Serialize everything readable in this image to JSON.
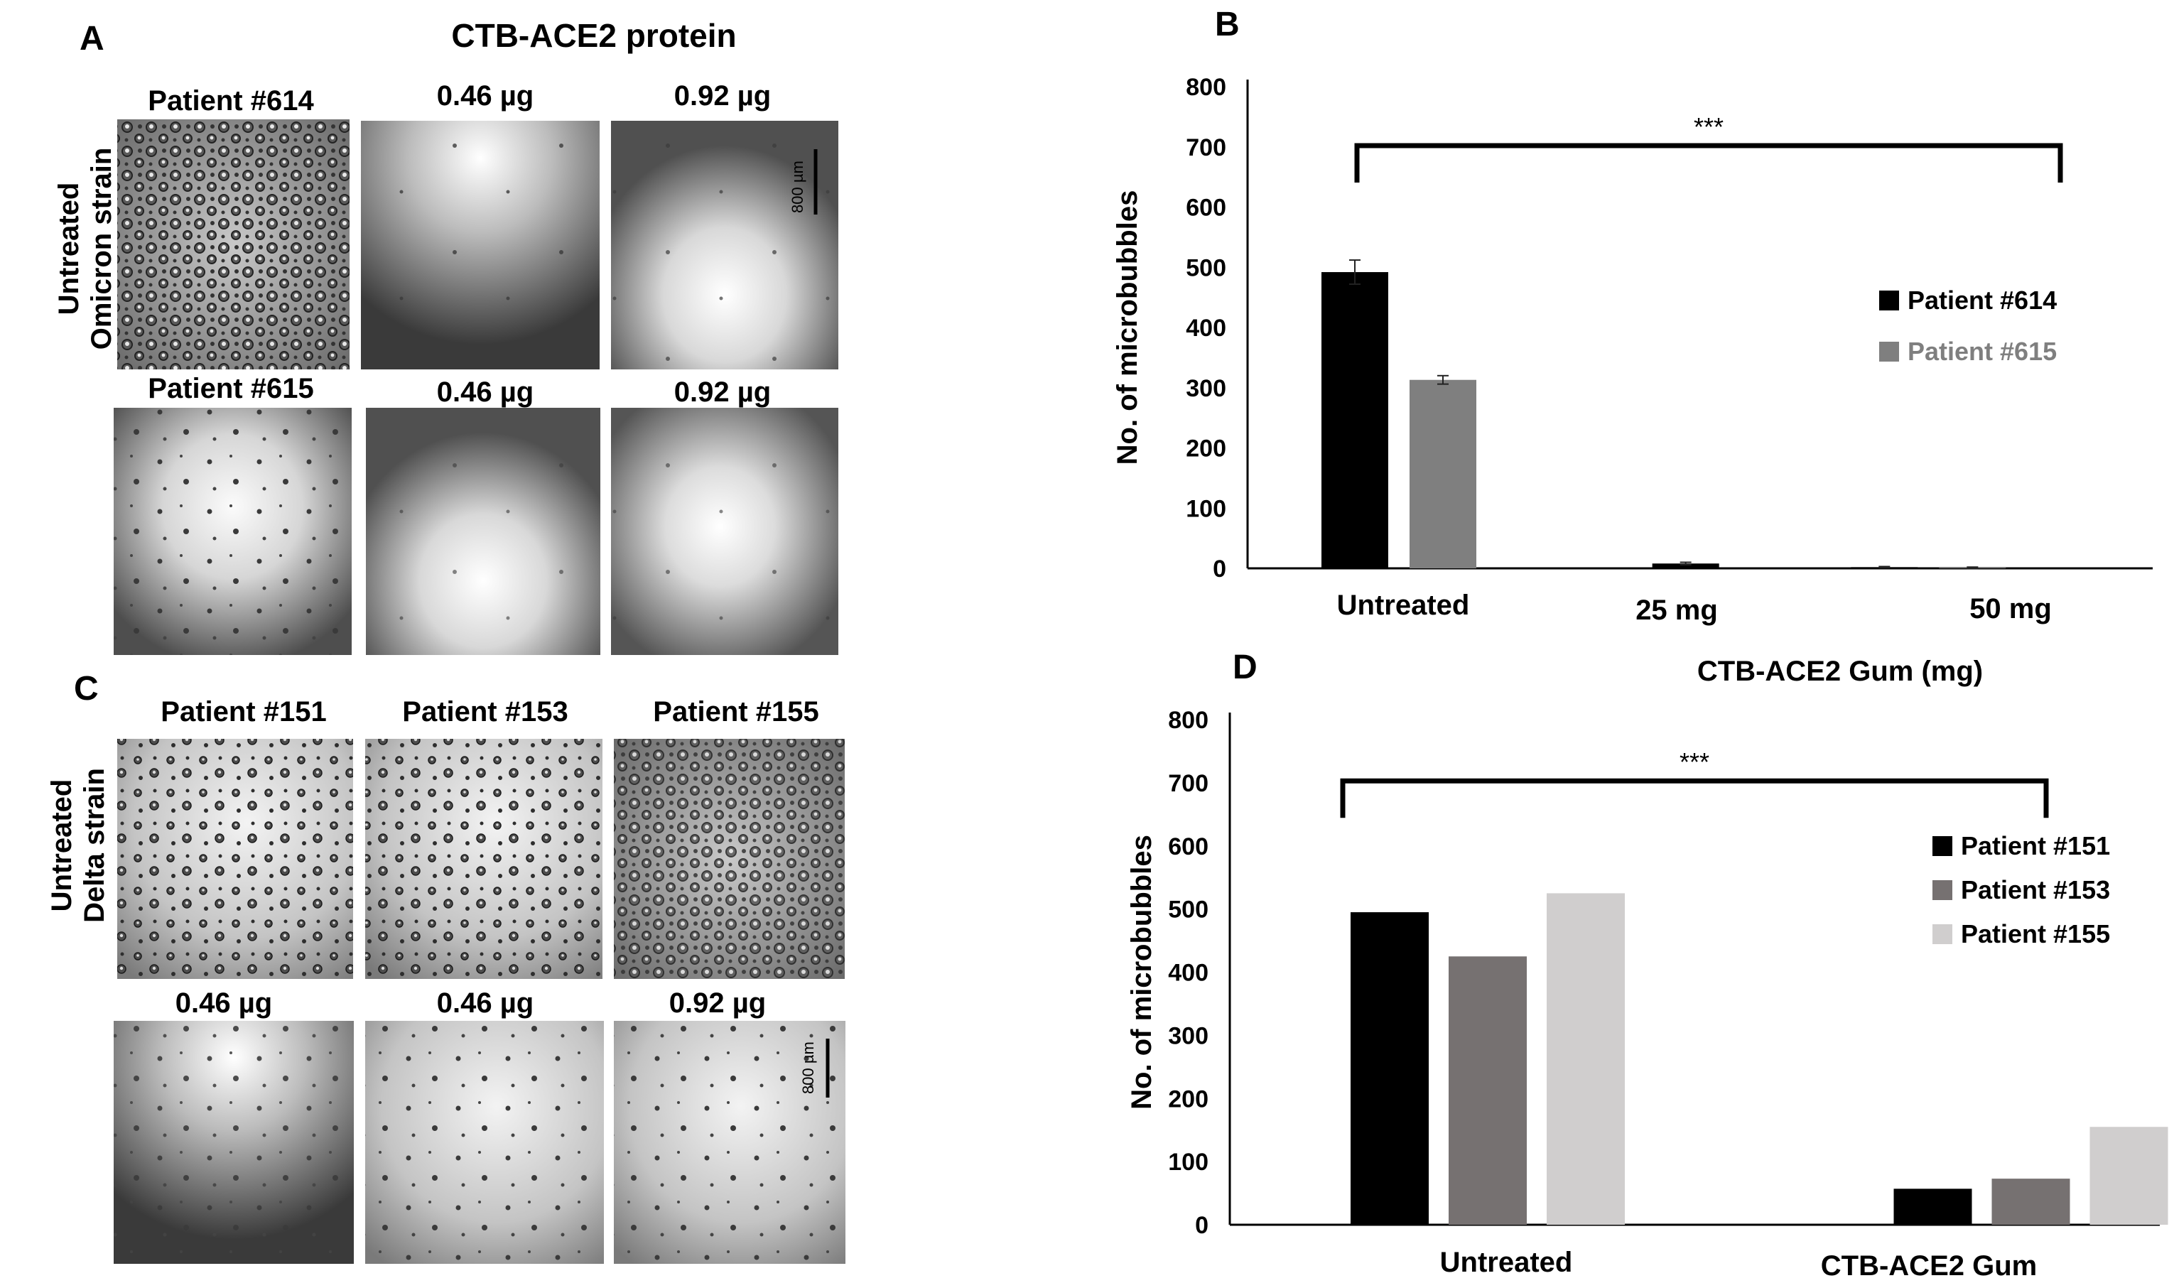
{
  "panels": {
    "a": {
      "letter": "A",
      "header": "CTB-ACE2 protein",
      "row_label_line1": "Untreated",
      "row_label_line2": "Omicron strain",
      "row1": [
        "Patient #614",
        "0.46 µg",
        "0.92 µg"
      ],
      "row2": [
        "Patient #615",
        "0.46 µg",
        "0.92 µg"
      ],
      "scale_bar": "800 µm"
    },
    "c": {
      "letter": "C",
      "row_label_line1": "Untreated",
      "row_label_line2": "Delta strain",
      "row1": [
        "Patient #151",
        "Patient #153",
        "Patient #155"
      ],
      "row2": [
        "0.46 µg",
        "0.46 µg",
        "0.92 µg"
      ],
      "scale_bar": "800 µm"
    }
  },
  "chart_data": [
    {
      "panel": "B",
      "type": "bar",
      "title": "",
      "xlabel": "CTB-ACE2 Gum (mg)",
      "ylabel": "No. of microbubbles",
      "categories": [
        "Untreated",
        "25 mg",
        "50 mg"
      ],
      "series": [
        {
          "name": "Patient #614",
          "values": [
            492,
            8,
            2
          ],
          "errors": [
            20,
            2,
            1
          ],
          "color": "#000000"
        },
        {
          "name": "Patient #615",
          "values": [
            313,
            0,
            1
          ],
          "errors": [
            7,
            0,
            1
          ],
          "color": "#7f7f7f"
        }
      ],
      "ylim": [
        0,
        800
      ],
      "yticks": [
        0,
        100,
        200,
        300,
        400,
        500,
        600,
        700,
        800
      ],
      "significance": "***",
      "grid": false,
      "legend": "right"
    },
    {
      "panel": "D",
      "type": "bar",
      "title": "",
      "xlabel": "",
      "ylabel": "No. of microbubbles",
      "categories": [
        "Untreated",
        "CTB-ACE2 Gum"
      ],
      "series": [
        {
          "name": "Patient #151",
          "values": [
            495,
            57
          ],
          "color": "#000000"
        },
        {
          "name": "Patient #153",
          "values": [
            425,
            73
          ],
          "color": "#767171"
        },
        {
          "name": "Patient #155",
          "values": [
            525,
            155
          ],
          "color": "#d0cece"
        }
      ],
      "ylim": [
        0,
        800
      ],
      "yticks": [
        0,
        100,
        200,
        300,
        400,
        500,
        600,
        700,
        800
      ],
      "significance": "***",
      "grid": false,
      "legend": "right"
    }
  ]
}
